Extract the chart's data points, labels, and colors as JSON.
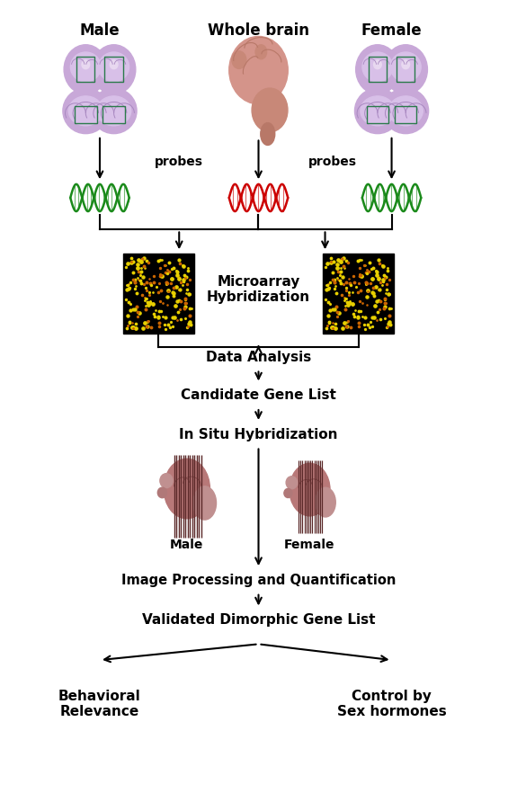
{
  "bg_color": "#ffffff",
  "text_color": "#000000",
  "title_male": "Male",
  "title_whole_brain": "Whole brain",
  "title_female": "Female",
  "label_probes_left": "probes",
  "label_probes_right": "probes",
  "label_microarray": "Microarray\nHybridization",
  "label_data_analysis": "Data Analysis",
  "label_candidate": "Candidate Gene List",
  "label_in_situ": "In Situ Hybridization",
  "label_male_brain": "Male",
  "label_female_brain": "Female",
  "label_image_proc": "Image Processing and Quantification",
  "label_validated": "Validated Dimorphic Gene List",
  "label_behavioral": "Behavioral\nRelevance",
  "label_control": "Control by\nSex hormones",
  "green_dna_color": "#1a8a1a",
  "red_dna_color": "#cc0000",
  "brain_slice_outer": "#c8a8d8",
  "brain_slice_inner": "#d8c0e8",
  "brain_box_color": "#2a7a4a",
  "whole_brain_main": "#d4948a",
  "whole_brain_dark": "#b87868",
  "microarray_bg": "#000000",
  "microarray_yellow": "#e8d000",
  "ish_brain_main": "#b87878",
  "ish_brain_dark": "#8a5050",
  "ish_line_color": "#5a2828",
  "figsize": [
    5.75,
    8.92
  ],
  "dpi": 100
}
